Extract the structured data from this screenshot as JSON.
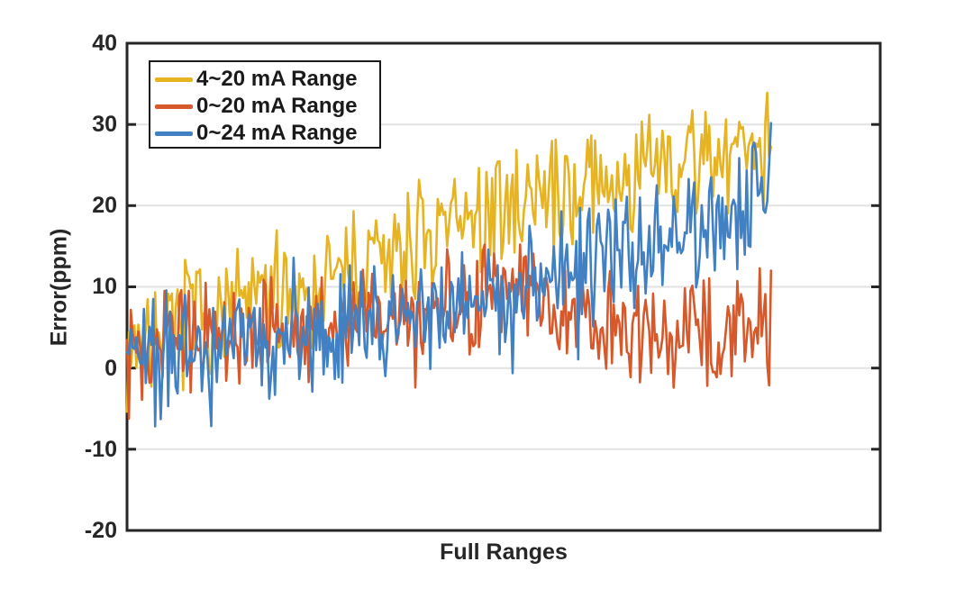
{
  "figure": {
    "background_color": "#ffffff",
    "axis_color": "#262626",
    "grid_color": "#e2e2e2",
    "legend_border_color": "#1a1a1a"
  },
  "chart_data": {
    "type": "line",
    "title": "",
    "xlabel": "Full Ranges",
    "ylabel": "Error(ppm)",
    "ylim": [
      -20,
      40
    ],
    "yticks": [
      -20,
      -10,
      0,
      10,
      20,
      30,
      40
    ],
    "xticks": [],
    "grid": "horizontal-only",
    "legend_position": "top-left",
    "legend_border": true,
    "x_axis_note": "no x tick labels; noisy dense traces span left ~85% of axis width",
    "x_data_fraction": 0.855,
    "clip": [
      -14,
      37
    ],
    "series": [
      {
        "name": "4~20 mA Range",
        "color": "#E6B422",
        "seed": 7,
        "points": 345,
        "noise_amp": 8.5,
        "spike_prob": 0.05,
        "spike_amp": 4.5,
        "trend": [
          [
            0,
            2.5
          ],
          [
            0.05,
            4
          ],
          [
            0.1,
            6
          ],
          [
            0.15,
            7
          ],
          [
            0.2,
            8.5
          ],
          [
            0.25,
            10
          ],
          [
            0.3,
            10.5
          ],
          [
            0.35,
            12
          ],
          [
            0.4,
            13.5
          ],
          [
            0.45,
            15
          ],
          [
            0.5,
            17
          ],
          [
            0.55,
            18.5
          ],
          [
            0.6,
            20
          ],
          [
            0.65,
            21
          ],
          [
            0.7,
            21.5
          ],
          [
            0.75,
            22.5
          ],
          [
            0.8,
            24
          ],
          [
            0.85,
            25
          ],
          [
            0.9,
            25.5
          ],
          [
            0.95,
            27
          ],
          [
            1,
            29
          ]
        ]
      },
      {
        "name": "0~20 mA Range",
        "color": "#D7592B",
        "seed": 13,
        "points": 345,
        "noise_amp": 7.5,
        "spike_prob": 0.06,
        "spike_amp": 4.5,
        "trend": [
          [
            0,
            4
          ],
          [
            0.05,
            3.5
          ],
          [
            0.1,
            3.5
          ],
          [
            0.15,
            4
          ],
          [
            0.2,
            4.5
          ],
          [
            0.25,
            5
          ],
          [
            0.3,
            5.5
          ],
          [
            0.35,
            6.5
          ],
          [
            0.4,
            7
          ],
          [
            0.45,
            7
          ],
          [
            0.5,
            7.5
          ],
          [
            0.55,
            8.5
          ],
          [
            0.6,
            9
          ],
          [
            0.65,
            8
          ],
          [
            0.7,
            6
          ],
          [
            0.75,
            5
          ],
          [
            0.8,
            4.5
          ],
          [
            0.85,
            4.5
          ],
          [
            0.9,
            4.5
          ],
          [
            0.95,
            5
          ],
          [
            1,
            6
          ]
        ]
      },
      {
        "name": "0~24 mA Range",
        "color": "#4181C3",
        "seed": 21,
        "points": 345,
        "noise_amp": 8.8,
        "spike_prob": 0.07,
        "spike_amp": 6.5,
        "trend": [
          [
            0,
            3
          ],
          [
            0.05,
            2
          ],
          [
            0.1,
            1.5
          ],
          [
            0.15,
            2.5
          ],
          [
            0.2,
            3.5
          ],
          [
            0.25,
            4
          ],
          [
            0.3,
            5
          ],
          [
            0.35,
            5.5
          ],
          [
            0.4,
            6
          ],
          [
            0.45,
            7
          ],
          [
            0.5,
            7.5
          ],
          [
            0.55,
            8.5
          ],
          [
            0.6,
            10
          ],
          [
            0.65,
            12
          ],
          [
            0.7,
            12
          ],
          [
            0.75,
            13.5
          ],
          [
            0.8,
            14.5
          ],
          [
            0.85,
            15.5
          ],
          [
            0.9,
            17
          ],
          [
            0.95,
            19
          ],
          [
            1,
            23
          ]
        ]
      }
    ]
  }
}
